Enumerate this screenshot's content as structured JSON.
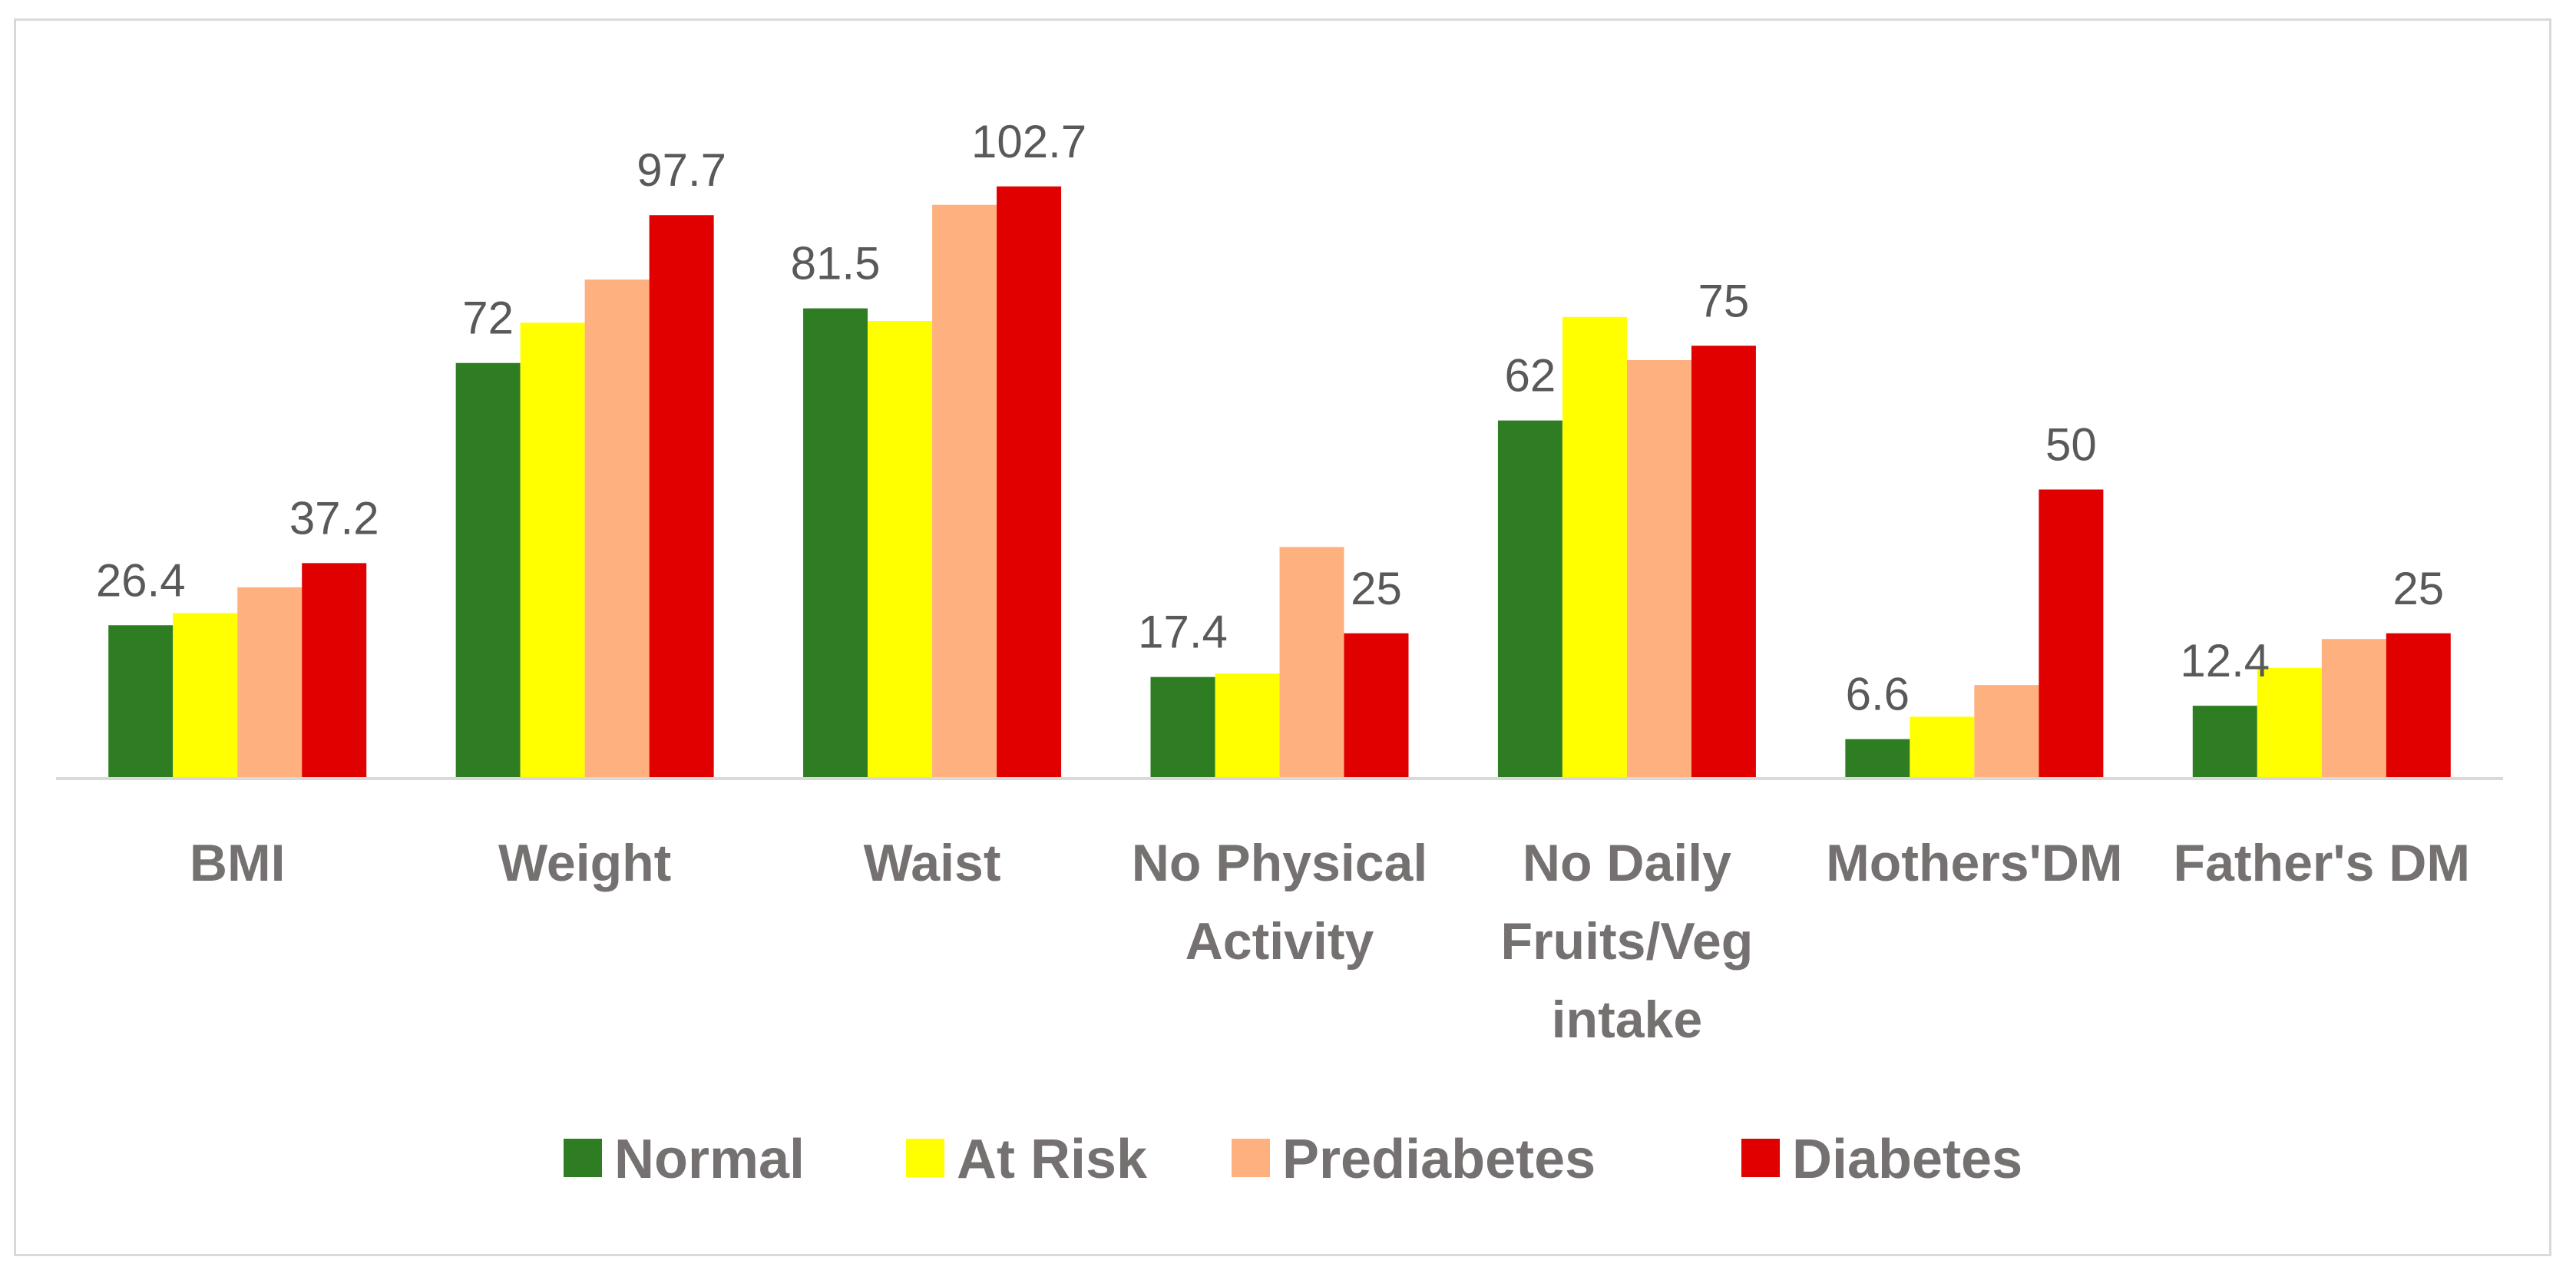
{
  "chart_data": {
    "type": "bar",
    "title": "",
    "xlabel": "",
    "ylabel": "",
    "ylim": [
      0,
      110
    ],
    "grid": false,
    "legend_position": "bottom",
    "categories": [
      [
        "BMI"
      ],
      [
        "Weight"
      ],
      [
        "Waist"
      ],
      [
        "No Physical",
        "Activity"
      ],
      [
        "No Daily",
        "Fruits/Veg",
        "intake"
      ],
      [
        "Mothers'DM"
      ],
      [
        "Father's DM"
      ]
    ],
    "series": [
      {
        "name": "Normal",
        "color": "#2e7d23",
        "values": [
          26.4,
          72,
          81.5,
          17.4,
          62,
          6.6,
          12.4
        ]
      },
      {
        "name": "At Risk",
        "color": "#ffff00",
        "values": [
          28.5,
          79,
          79.3,
          18,
          80,
          10.5,
          19
        ]
      },
      {
        "name": "Prediabetes",
        "color": "#ffb07f",
        "values": [
          33,
          86.5,
          99.5,
          40,
          72.5,
          16,
          24
        ]
      },
      {
        "name": "Diabetes",
        "color": "#e00000",
        "values": [
          37.2,
          97.7,
          102.7,
          25,
          75,
          50,
          25
        ]
      }
    ],
    "data_labels": [
      {
        "series": 0,
        "category": 0,
        "text": "26.4"
      },
      {
        "series": 3,
        "category": 0,
        "text": "37.2"
      },
      {
        "series": 0,
        "category": 1,
        "text": "72"
      },
      {
        "series": 3,
        "category": 1,
        "text": "97.7"
      },
      {
        "series": 0,
        "category": 2,
        "text": "81.5"
      },
      {
        "series": 3,
        "category": 2,
        "text": "102.7"
      },
      {
        "series": 0,
        "category": 3,
        "text": "17.4"
      },
      {
        "series": 3,
        "category": 3,
        "text": "25"
      },
      {
        "series": 0,
        "category": 4,
        "text": "62"
      },
      {
        "series": 3,
        "category": 4,
        "text": "75"
      },
      {
        "series": 0,
        "category": 5,
        "text": "6.6"
      },
      {
        "series": 3,
        "category": 5,
        "text": "50"
      },
      {
        "series": 0,
        "category": 6,
        "text": "12.4"
      },
      {
        "series": 3,
        "category": 6,
        "text": "25"
      }
    ]
  }
}
